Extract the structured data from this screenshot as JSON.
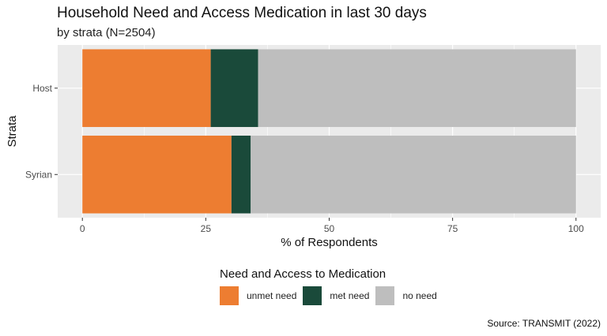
{
  "chart_data": {
    "type": "bar",
    "orientation": "horizontal",
    "stacked": true,
    "title": "Household Need and Access Medication in last 30 days",
    "subtitle": "by strata (N=2504)",
    "xlabel": "% of Respondents",
    "ylabel": "Strata",
    "xlim": [
      0,
      100
    ],
    "xticks": [
      "0",
      "25",
      "50",
      "75",
      "100"
    ],
    "categories": [
      "Host",
      "Syrian"
    ],
    "series": [
      {
        "name": "unmet need",
        "color": "#ED7D31",
        "values": [
          26.0,
          30.2
        ]
      },
      {
        "name": "met need",
        "color": "#1A4A3A",
        "values": [
          9.6,
          3.9
        ]
      },
      {
        "name": "no need",
        "color": "#BEBEBE",
        "values": [
          64.4,
          65.9
        ]
      }
    ],
    "legend_title": "Need and Access to Medication",
    "legend_position": "bottom",
    "grid": true,
    "panel_background": "#EBEBEB",
    "caption": "Source: TRANSMIT (2022)"
  }
}
